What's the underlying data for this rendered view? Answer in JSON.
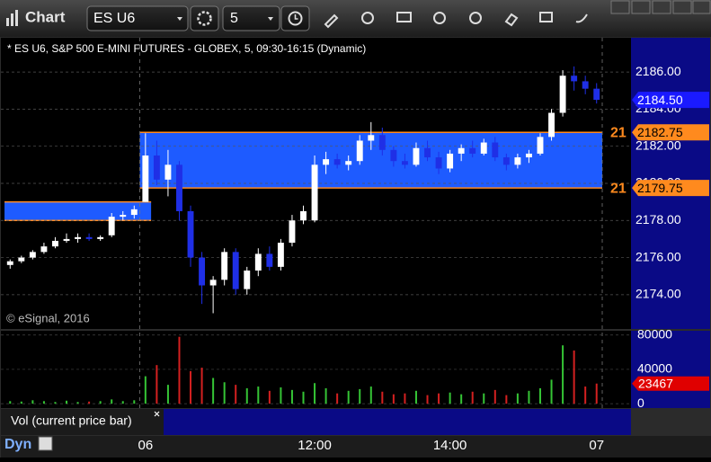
{
  "toolbar": {
    "title": "Chart",
    "symbol": "ES U6",
    "interval": "5"
  },
  "chart_data": {
    "type": "candlestick",
    "title": "* ES U6, S&P 500 E-MINI FUTURES - GLOBEX, 5, 09:30-16:15 (Dynamic)",
    "copyright": "© eSignal, 2016",
    "xlabel": "Dyn",
    "categories": [
      null,
      null,
      null,
      null,
      null,
      null,
      null,
      null,
      null,
      null,
      null,
      null,
      "06",
      null,
      null,
      null,
      null,
      null,
      null,
      null,
      null,
      null,
      null,
      null,
      null,
      null,
      null,
      "12:00",
      null,
      null,
      null,
      null,
      null,
      null,
      null,
      null,
      null,
      null,
      null,
      "14:00",
      null,
      null,
      null,
      null,
      null,
      null,
      null,
      null,
      null,
      null,
      null,
      null,
      "07"
    ],
    "open": [
      2175.6,
      2175.8,
      2176.0,
      2176.3,
      2176.6,
      2176.9,
      2177.0,
      2177.1,
      2177.0,
      2177.2,
      2178.2,
      2178.3,
      2179.0,
      2181.5,
      2180.2,
      2181.0,
      2178.5,
      2176.0,
      2174.5,
      2174.8,
      2176.3,
      2174.3,
      2175.3,
      2176.2,
      2175.5,
      2176.8,
      2178.0,
      2178.0,
      2181.0,
      2181.3,
      2181.0,
      2181.2,
      2182.3,
      2182.6,
      2181.8,
      2181.2,
      2181.0,
      2181.9,
      2181.4,
      2180.8,
      2181.6,
      2181.9,
      2181.6,
      2182.2,
      2181.4,
      2181.0,
      2181.4,
      2181.6,
      2182.5,
      2183.8,
      2185.8,
      2185.5,
      2185.1
    ],
    "high": [
      2175.9,
      2176.1,
      2176.4,
      2176.8,
      2177.1,
      2177.3,
      2177.3,
      2177.3,
      2177.2,
      2178.4,
      2178.5,
      2178.8,
      2182.7,
      2182.3,
      2181.8,
      2181.2,
      2178.8,
      2176.3,
      2175.0,
      2176.5,
      2176.5,
      2175.5,
      2176.5,
      2176.6,
      2177.0,
      2178.3,
      2178.8,
      2181.5,
      2181.7,
      2181.6,
      2181.5,
      2182.6,
      2183.3,
      2183.0,
      2182.0,
      2181.6,
      2182.2,
      2182.3,
      2181.7,
      2181.8,
      2182.1,
      2182.3,
      2182.4,
      2182.5,
      2181.6,
      2181.6,
      2181.8,
      2182.7,
      2184.0,
      2186.1,
      2186.3,
      2185.8,
      2185.4
    ],
    "low": [
      2175.4,
      2175.7,
      2175.9,
      2176.2,
      2176.5,
      2176.8,
      2176.8,
      2176.9,
      2176.9,
      2177.1,
      2178.0,
      2178.1,
      2179.0,
      2179.9,
      2179.3,
      2178.0,
      2175.5,
      2173.5,
      2173.0,
      2174.5,
      2174.0,
      2174.0,
      2175.0,
      2175.3,
      2175.3,
      2176.6,
      2177.8,
      2177.9,
      2180.5,
      2180.8,
      2180.7,
      2181.0,
      2181.8,
      2181.5,
      2180.9,
      2180.8,
      2180.9,
      2181.2,
      2180.5,
      2180.6,
      2181.2,
      2181.4,
      2181.5,
      2181.2,
      2180.7,
      2180.8,
      2181.1,
      2181.5,
      2182.3,
      2183.6,
      2185.0,
      2184.8,
      2184.3
    ],
    "close": [
      2175.8,
      2176.0,
      2176.3,
      2176.6,
      2176.9,
      2177.0,
      2177.1,
      2177.0,
      2177.1,
      2178.2,
      2178.3,
      2178.6,
      2181.5,
      2180.2,
      2181.0,
      2178.5,
      2176.0,
      2174.5,
      2174.8,
      2176.3,
      2174.3,
      2175.3,
      2176.2,
      2175.5,
      2176.8,
      2178.0,
      2178.5,
      2181.0,
      2181.3,
      2181.0,
      2181.2,
      2182.3,
      2182.6,
      2181.8,
      2181.2,
      2181.0,
      2181.9,
      2181.4,
      2180.8,
      2181.6,
      2181.9,
      2181.6,
      2182.2,
      2181.4,
      2181.0,
      2181.4,
      2181.6,
      2182.5,
      2183.8,
      2185.8,
      2185.5,
      2185.1,
      2184.5
    ],
    "up_color": "#ffffff",
    "down_color": "#1f2fe6",
    "ylim": [
      2172.2,
      2187.7
    ],
    "yticks": [
      {
        "value": 2174,
        "label": "2174.00"
      },
      {
        "value": 2176,
        "label": "2176.00"
      },
      {
        "value": 2178,
        "label": "2178.00"
      },
      {
        "value": 2180,
        "label": "2180.00"
      },
      {
        "value": 2182,
        "label": "2182.00"
      },
      {
        "value": 2184,
        "label": "2184.00"
      },
      {
        "value": 2186,
        "label": "2186.00"
      }
    ],
    "grid": true,
    "session_breaks": [
      12,
      52
    ],
    "zones": [
      {
        "low": 2179.75,
        "high": 2182.75,
        "start_index": 12,
        "end_index": 52,
        "color": "#1e5bff"
      },
      {
        "low": 2178.0,
        "high": 2179.0,
        "start_index": 0,
        "end_index": 12,
        "color": "#1e5bff"
      }
    ],
    "levels": [
      {
        "value": 2182.75,
        "label": "2182.75",
        "tag": "21",
        "color": "#ff8a1e"
      },
      {
        "value": 2179.75,
        "label": "2179.75",
        "tag": "21",
        "color": "#ff8a1e"
      }
    ],
    "last_price": {
      "value": 2184.5,
      "label": "2184.50",
      "color": "#1a1aff"
    },
    "volume": {
      "name": "Vol (current price bar)",
      "values": [
        3000,
        2500,
        4000,
        3000,
        2000,
        3500,
        2000,
        2500,
        3000,
        5000,
        3000,
        4000,
        32000,
        45000,
        22000,
        78000,
        38000,
        42000,
        30000,
        25000,
        22000,
        18000,
        20000,
        15000,
        19000,
        16000,
        14000,
        24000,
        18000,
        12000,
        15000,
        17000,
        20000,
        14000,
        11000,
        12000,
        15000,
        10000,
        12000,
        13000,
        11000,
        14000,
        12000,
        16000,
        10000,
        12000,
        15000,
        18000,
        28000,
        68000,
        62000,
        20000,
        23467
      ],
      "up_color": "#35c435",
      "down_color": "#d42020",
      "last_color": "#e00000",
      "ylim": [
        -3000,
        85000
      ],
      "yticks": [
        0,
        40000,
        80000
      ]
    }
  }
}
